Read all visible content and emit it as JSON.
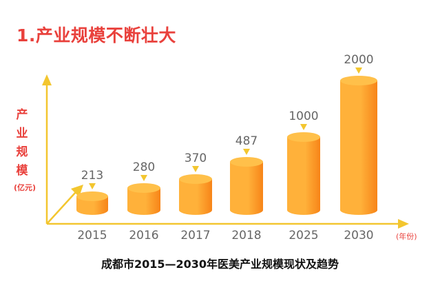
{
  "heading": "1.产业规模不断壮大",
  "caption": "成都市2015—2030年医美产业规模现状及趋势",
  "colors": {
    "accent": "#e9413c",
    "axis": "#f3c62f",
    "bar_top": "#ffc04a",
    "bar_side_light": "#ffb13a",
    "bar_side_dark": "#f78418",
    "label_gray": "#666666"
  },
  "chart_data": {
    "type": "bar",
    "title": "",
    "ylabel": "产业规模",
    "yunit": "(亿元)",
    "xunit": "(年份)",
    "categories": [
      "2015",
      "2016",
      "2017",
      "2018",
      "2025",
      "2030"
    ],
    "values": [
      213,
      280,
      370,
      487,
      1000,
      2000
    ],
    "data_labels": [
      "213",
      "280",
      "370",
      "487",
      "1000",
      "2000"
    ],
    "style": "3d-cylinder",
    "grid": false,
    "legend": "none"
  }
}
